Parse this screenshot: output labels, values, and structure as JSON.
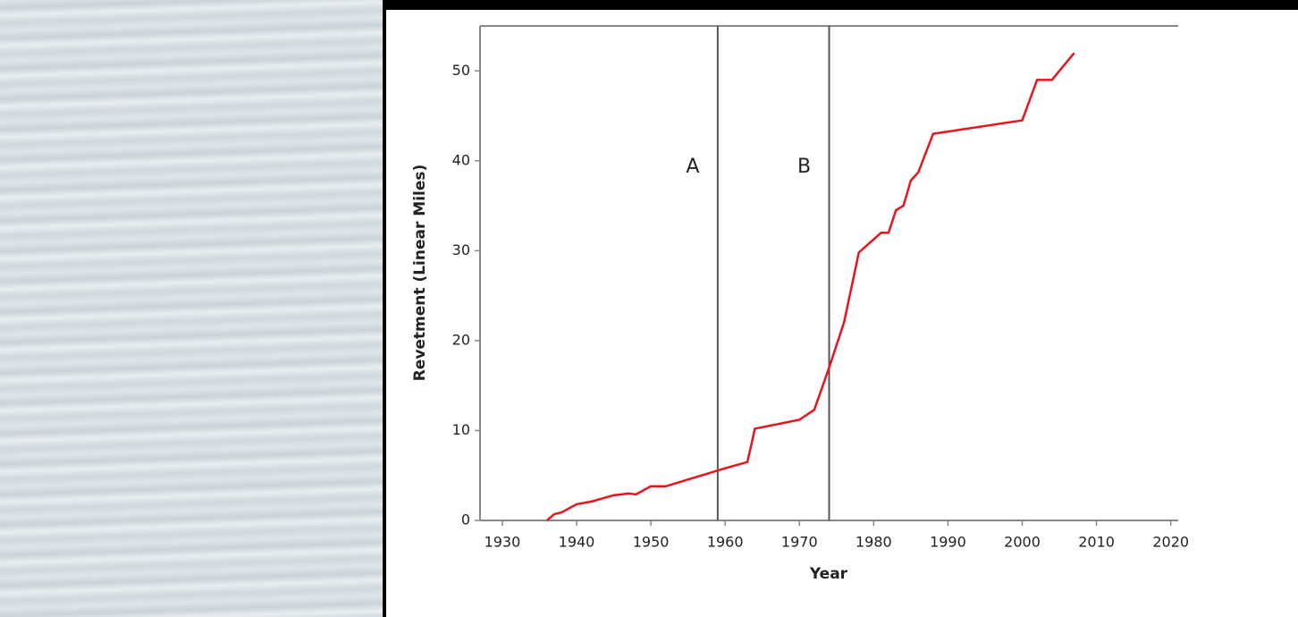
{
  "chart_data": {
    "type": "line",
    "x_label": "Year",
    "y_label": "Revetment (Linear Miles)",
    "x": [
      1936,
      1937,
      1938,
      1940,
      1942,
      1945,
      1947,
      1948,
      1950,
      1952,
      1960,
      1963,
      1964,
      1970,
      1972,
      1974,
      1976,
      1978,
      1981,
      1982,
      1983,
      1984,
      1985,
      1986,
      1988,
      2000,
      2002,
      2004,
      2007
    ],
    "series": [
      {
        "color": "#e8141c",
        "values": [
          0,
          0.7,
          0.9,
          1.8,
          2.1,
          2.8,
          3.0,
          2.9,
          3.8,
          3.8,
          5.8,
          6.5,
          10.2,
          11.2,
          12.3,
          17,
          22,
          29.8,
          32,
          32,
          34.5,
          35,
          37.8,
          38.7,
          43,
          44.5,
          49,
          49,
          52
        ]
      }
    ],
    "xlim": [
      1927,
      2021
    ],
    "ylim": [
      0,
      55
    ],
    "xticks": [
      1930,
      1940,
      1950,
      1960,
      1970,
      1980,
      1990,
      2000,
      2010,
      2020
    ],
    "yticks": [
      0,
      10,
      20,
      30,
      40,
      50
    ],
    "annotations": [
      {
        "text": "A",
        "x": 1959
      },
      {
        "text": "B",
        "x": 1974
      }
    ]
  }
}
